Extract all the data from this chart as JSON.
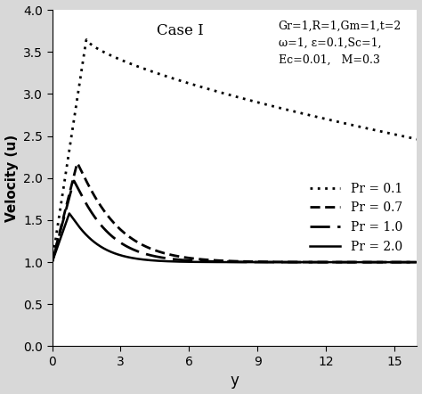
{
  "title_case": "Case I",
  "params_text": "Gr=1,R=1,Gm=1,t=2\nω=1, ε=0.1,Sc=1,\nEc=0.01,   M=0.3",
  "xlabel": "y",
  "ylabel": "Velocity (u)",
  "xlim": [
    0,
    16
  ],
  "ylim": [
    0,
    4
  ],
  "xticks": [
    0,
    3,
    6,
    9,
    12,
    15
  ],
  "yticks": [
    0,
    0.5,
    1,
    1.5,
    2,
    2.5,
    3,
    3.5,
    4
  ],
  "legend_labels": [
    "Pr = 0.1",
    "Pr = 0.7",
    "Pr = 1.0",
    "Pr = 2.0"
  ],
  "background_color": "#d8d8d8",
  "axes_background": "#ffffff",
  "profiles": {
    "Pr01": {
      "peak_val": 3.65,
      "peak_y": 1.5,
      "end_val": 2.52,
      "decay_exp": 0.35
    },
    "Pr07": {
      "peak_val": 2.18,
      "peak_y": 1.1,
      "end_val": 1.01,
      "decay_exp": 0.55
    },
    "Pr10": {
      "peak_val": 1.97,
      "peak_y": 0.95,
      "end_val": 1.01,
      "decay_exp": 0.65
    },
    "Pr20": {
      "peak_val": 1.58,
      "peak_y": 0.75,
      "end_val": 1.01,
      "decay_exp": 0.8
    }
  }
}
